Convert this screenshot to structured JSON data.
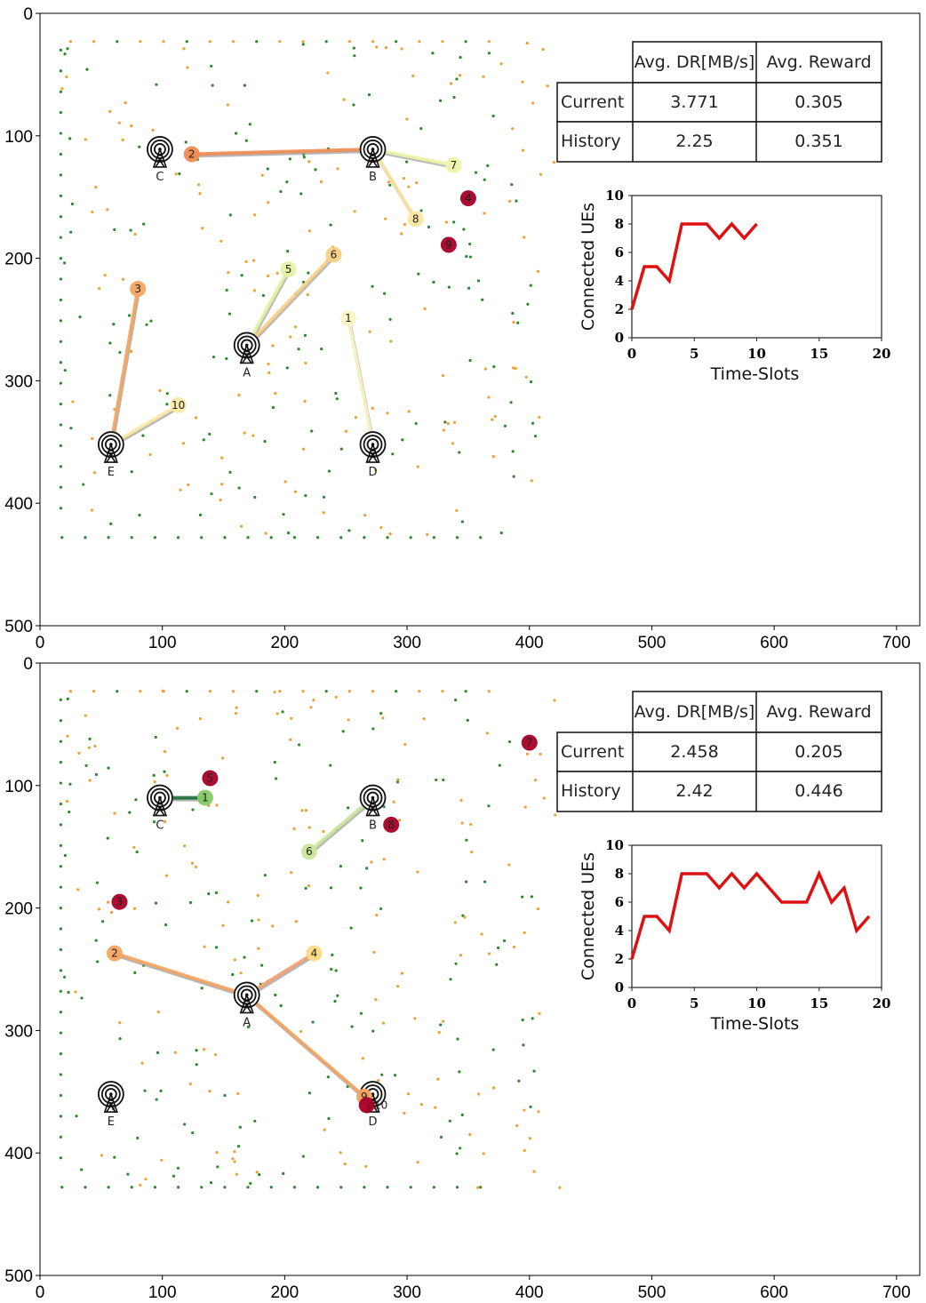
{
  "panels": [
    {
      "table": {
        "headers": [
          "",
          "Avg. DR[MB/s]",
          "Avg. Reward"
        ],
        "rows": [
          {
            "label": "Current",
            "values": [
              "3.771",
              "0.305"
            ]
          },
          {
            "label": "History",
            "values": [
              "2.25",
              "0.351"
            ]
          }
        ]
      }
    },
    {
      "table": {
        "headers": [
          "",
          "Avg. DR[MB/s]",
          "Avg. Reward"
        ],
        "rows": [
          {
            "label": "Current",
            "values": [
              "2.458",
              "0.205"
            ]
          },
          {
            "label": "History",
            "values": [
              "2.42",
              "0.446"
            ]
          }
        ]
      }
    }
  ],
  "colors": {
    "green_dots": "#2a8a2a",
    "orange_dots": "#f0a030",
    "line": "#dd1111",
    "link_shadow": "#9a9a9a"
  },
  "chart_data": [
    {
      "type": "scatter",
      "xlim": [
        0,
        719
      ],
      "ylim": [
        500,
        0
      ],
      "xticks": [
        0,
        100,
        200,
        300,
        400,
        500,
        600,
        700
      ],
      "yticks": [
        0,
        100,
        200,
        300,
        400,
        500
      ],
      "base_stations": [
        {
          "id": "C",
          "x": 98,
          "y": 111
        },
        {
          "id": "B",
          "x": 272,
          "y": 111
        },
        {
          "id": "A",
          "x": 169,
          "y": 271
        },
        {
          "id": "E",
          "x": 58,
          "y": 352
        },
        {
          "id": "D",
          "x": 272,
          "y": 352
        }
      ],
      "ues": [
        {
          "id": "2",
          "x": 124,
          "y": 115,
          "bs": "B",
          "color": "#f08a50"
        },
        {
          "id": "7",
          "x": 338,
          "y": 124,
          "bs": "B",
          "color": "#eef5a8"
        },
        {
          "id": "8",
          "x": 307,
          "y": 168,
          "bs": "B",
          "color": "#fbe6a0"
        },
        {
          "id": "4",
          "x": 350,
          "y": 151,
          "bs": null,
          "color": "#a50026"
        },
        {
          "id": "9",
          "x": 334,
          "y": 189,
          "bs": null,
          "color": "#a50026"
        },
        {
          "id": "5",
          "x": 203,
          "y": 209,
          "bs": "A",
          "color": "#e4f2a4"
        },
        {
          "id": "6",
          "x": 240,
          "y": 197,
          "bs": "A",
          "color": "#f9cf85"
        },
        {
          "id": "1",
          "x": 252,
          "y": 249,
          "bs": "D",
          "color": "#fbf7c6"
        },
        {
          "id": "3",
          "x": 80,
          "y": 225,
          "bs": "E",
          "color": "#f4a562"
        },
        {
          "id": "10",
          "x": 113,
          "y": 320,
          "bs": "E",
          "color": "#fbe8a8"
        }
      ]
    },
    {
      "type": "line",
      "xlabel": "Time-Slots",
      "ylabel": "Connected UEs",
      "xlim": [
        0,
        20
      ],
      "ylim": [
        0,
        10
      ],
      "xticks": [
        0,
        5,
        10,
        15,
        20
      ],
      "yticks": [
        0,
        2,
        4,
        6,
        8,
        10
      ],
      "x": [
        0,
        1,
        2,
        3,
        4,
        5,
        6,
        7,
        8,
        9,
        10
      ],
      "y": [
        2,
        5,
        5,
        4,
        8,
        8,
        8,
        7,
        8,
        7,
        8
      ]
    },
    {
      "type": "scatter",
      "xlim": [
        0,
        719
      ],
      "ylim": [
        500,
        0
      ],
      "xticks": [
        0,
        100,
        200,
        300,
        400,
        500,
        600,
        700
      ],
      "yticks": [
        0,
        100,
        200,
        300,
        400,
        500
      ],
      "base_stations": [
        {
          "id": "C",
          "x": 98,
          "y": 110
        },
        {
          "id": "B",
          "x": 272,
          "y": 110
        },
        {
          "id": "A",
          "x": 169,
          "y": 271
        },
        {
          "id": "E",
          "x": 58,
          "y": 352
        },
        {
          "id": "D",
          "x": 272,
          "y": 352
        }
      ],
      "ues": [
        {
          "id": "7",
          "x": 400,
          "y": 65,
          "bs": null,
          "color": "#a50026"
        },
        {
          "id": "5",
          "x": 139,
          "y": 94,
          "bs": null,
          "color": "#a50026"
        },
        {
          "id": "1",
          "x": 135,
          "y": 110,
          "bs": "C",
          "color": "#86cb66",
          "link_color": "#1a6e3a"
        },
        {
          "id": "8",
          "x": 287,
          "y": 132,
          "bs": null,
          "color": "#a50026"
        },
        {
          "id": "6",
          "x": 220,
          "y": 154,
          "bs": "B",
          "color": "#c9e79a"
        },
        {
          "id": "3",
          "x": 65,
          "y": 195,
          "bs": null,
          "color": "#a50026"
        },
        {
          "id": "2",
          "x": 61,
          "y": 237,
          "bs": "A",
          "color": "#f4a562"
        },
        {
          "id": "4",
          "x": 224,
          "y": 237,
          "bs": "A",
          "color": "#fbd986",
          "link_color": "#f0a070"
        },
        {
          "id": "9",
          "x": 265,
          "y": 354,
          "bs": "A",
          "color": "#f4a562"
        },
        {
          "id": "10",
          "x": 267,
          "y": 361,
          "bs": null,
          "color": "#a50026"
        }
      ]
    },
    {
      "type": "line",
      "xlabel": "Time-Slots",
      "ylabel": "Connected UEs",
      "xlim": [
        0,
        20
      ],
      "ylim": [
        0,
        10
      ],
      "xticks": [
        0,
        5,
        10,
        15,
        20
      ],
      "yticks": [
        0,
        2,
        4,
        6,
        8,
        10
      ],
      "x": [
        0,
        1,
        2,
        3,
        4,
        5,
        6,
        7,
        8,
        9,
        10,
        11,
        12,
        13,
        14,
        15,
        16,
        17,
        18,
        19
      ],
      "y": [
        2,
        5,
        5,
        4,
        8,
        8,
        8,
        7,
        8,
        7,
        8,
        7,
        6,
        6,
        6,
        8,
        6,
        7,
        4,
        5
      ]
    }
  ]
}
